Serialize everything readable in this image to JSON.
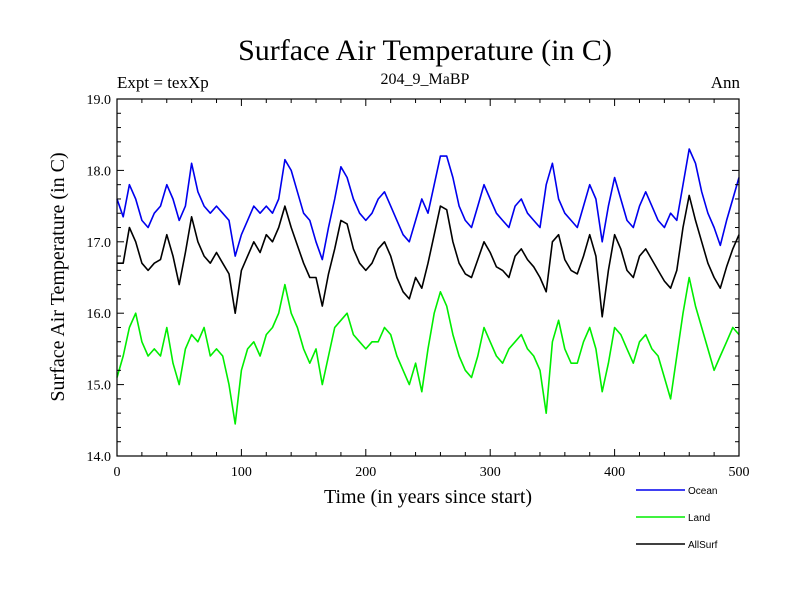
{
  "chart_data": {
    "type": "line",
    "title": "Surface Air Temperature (in C)",
    "subtitle": "204_9_MaBP",
    "left_label": "Expt = texXp",
    "right_label": "Ann",
    "xlabel": "Time (in years since start)",
    "ylabel": "Surface Air Temperature (in C)",
    "xlim": [
      0,
      500
    ],
    "ylim": [
      14.0,
      19.0
    ],
    "x_ticks": [
      0,
      100,
      200,
      300,
      400,
      500
    ],
    "x_tick_labels": [
      "0",
      "100",
      "200",
      "300",
      "400",
      "500"
    ],
    "y_ticks": [
      14.0,
      15.0,
      16.0,
      17.0,
      18.0,
      19.0
    ],
    "y_tick_labels": [
      "14.0",
      "15.0",
      "16.0",
      "17.0",
      "18.0",
      "19.0"
    ],
    "grid": false,
    "legend_position": "bottom-right, below plot",
    "x": [
      0,
      5,
      10,
      15,
      20,
      25,
      30,
      35,
      40,
      45,
      50,
      55,
      60,
      65,
      70,
      75,
      80,
      85,
      90,
      95,
      100,
      105,
      110,
      115,
      120,
      125,
      130,
      135,
      140,
      145,
      150,
      155,
      160,
      165,
      170,
      175,
      180,
      185,
      190,
      195,
      200,
      205,
      210,
      215,
      220,
      225,
      230,
      235,
      240,
      245,
      250,
      255,
      260,
      265,
      270,
      275,
      280,
      285,
      290,
      295,
      300,
      305,
      310,
      315,
      320,
      325,
      330,
      335,
      340,
      345,
      350,
      355,
      360,
      365,
      370,
      375,
      380,
      385,
      390,
      395,
      400,
      405,
      410,
      415,
      420,
      425,
      430,
      435,
      440,
      445,
      450,
      455,
      460,
      465,
      470,
      475,
      480,
      485,
      490,
      495,
      500
    ],
    "series": [
      {
        "name": "Ocean",
        "color": "#0000ee",
        "values": [
          17.6,
          17.35,
          17.8,
          17.6,
          17.3,
          17.2,
          17.4,
          17.5,
          17.8,
          17.6,
          17.3,
          17.5,
          18.1,
          17.7,
          17.5,
          17.4,
          17.5,
          17.4,
          17.3,
          16.8,
          17.1,
          17.3,
          17.5,
          17.4,
          17.5,
          17.4,
          17.6,
          18.15,
          18.0,
          17.7,
          17.4,
          17.3,
          17.0,
          16.75,
          17.2,
          17.6,
          18.05,
          17.9,
          17.6,
          17.4,
          17.3,
          17.4,
          17.6,
          17.7,
          17.5,
          17.3,
          17.1,
          17.0,
          17.3,
          17.6,
          17.4,
          17.8,
          18.2,
          18.2,
          17.9,
          17.5,
          17.3,
          17.2,
          17.5,
          17.8,
          17.6,
          17.4,
          17.3,
          17.2,
          17.5,
          17.6,
          17.4,
          17.3,
          17.2,
          17.8,
          18.1,
          17.6,
          17.4,
          17.3,
          17.2,
          17.5,
          17.8,
          17.6,
          17.0,
          17.5,
          17.9,
          17.6,
          17.3,
          17.2,
          17.5,
          17.7,
          17.5,
          17.3,
          17.2,
          17.4,
          17.3,
          17.8,
          18.3,
          18.1,
          17.7,
          17.4,
          17.2,
          16.95,
          17.3,
          17.6,
          17.9
        ]
      },
      {
        "name": "Land",
        "color": "#00ee00",
        "values": [
          15.1,
          15.4,
          15.8,
          16.0,
          15.6,
          15.4,
          15.5,
          15.4,
          15.8,
          15.3,
          15.0,
          15.5,
          15.7,
          15.6,
          15.8,
          15.4,
          15.5,
          15.4,
          15.0,
          14.45,
          15.2,
          15.5,
          15.6,
          15.4,
          15.7,
          15.8,
          16.0,
          16.4,
          16.0,
          15.8,
          15.5,
          15.3,
          15.5,
          15.0,
          15.4,
          15.8,
          15.9,
          16.0,
          15.7,
          15.6,
          15.5,
          15.6,
          15.6,
          15.8,
          15.7,
          15.4,
          15.2,
          15.0,
          15.3,
          14.9,
          15.5,
          16.0,
          16.3,
          16.1,
          15.7,
          15.4,
          15.2,
          15.1,
          15.4,
          15.8,
          15.6,
          15.4,
          15.3,
          15.5,
          15.6,
          15.7,
          15.5,
          15.4,
          15.2,
          14.6,
          15.6,
          15.9,
          15.5,
          15.3,
          15.3,
          15.6,
          15.8,
          15.5,
          14.9,
          15.3,
          15.8,
          15.7,
          15.5,
          15.3,
          15.6,
          15.7,
          15.5,
          15.4,
          15.1,
          14.8,
          15.4,
          16.0,
          16.5,
          16.1,
          15.8,
          15.5,
          15.2,
          15.4,
          15.6,
          15.8,
          15.7
        ]
      },
      {
        "name": "AllSurf",
        "color": "#000000",
        "values": [
          16.7,
          16.7,
          17.2,
          17.0,
          16.7,
          16.6,
          16.7,
          16.75,
          17.1,
          16.8,
          16.4,
          16.85,
          17.35,
          17.0,
          16.8,
          16.7,
          16.85,
          16.7,
          16.55,
          16.0,
          16.6,
          16.8,
          17.0,
          16.85,
          17.1,
          17.0,
          17.2,
          17.5,
          17.2,
          16.95,
          16.7,
          16.5,
          16.5,
          16.1,
          16.55,
          16.9,
          17.3,
          17.25,
          16.9,
          16.7,
          16.6,
          16.7,
          16.9,
          17.0,
          16.8,
          16.5,
          16.3,
          16.2,
          16.5,
          16.35,
          16.7,
          17.1,
          17.5,
          17.45,
          17.0,
          16.7,
          16.55,
          16.5,
          16.75,
          17.0,
          16.85,
          16.65,
          16.6,
          16.5,
          16.8,
          16.9,
          16.75,
          16.65,
          16.5,
          16.3,
          17.0,
          17.1,
          16.75,
          16.6,
          16.55,
          16.8,
          17.1,
          16.8,
          15.95,
          16.6,
          17.1,
          16.9,
          16.6,
          16.5,
          16.8,
          16.9,
          16.75,
          16.6,
          16.45,
          16.35,
          16.6,
          17.2,
          17.65,
          17.3,
          17.0,
          16.7,
          16.5,
          16.35,
          16.65,
          16.9,
          17.1
        ]
      }
    ]
  }
}
